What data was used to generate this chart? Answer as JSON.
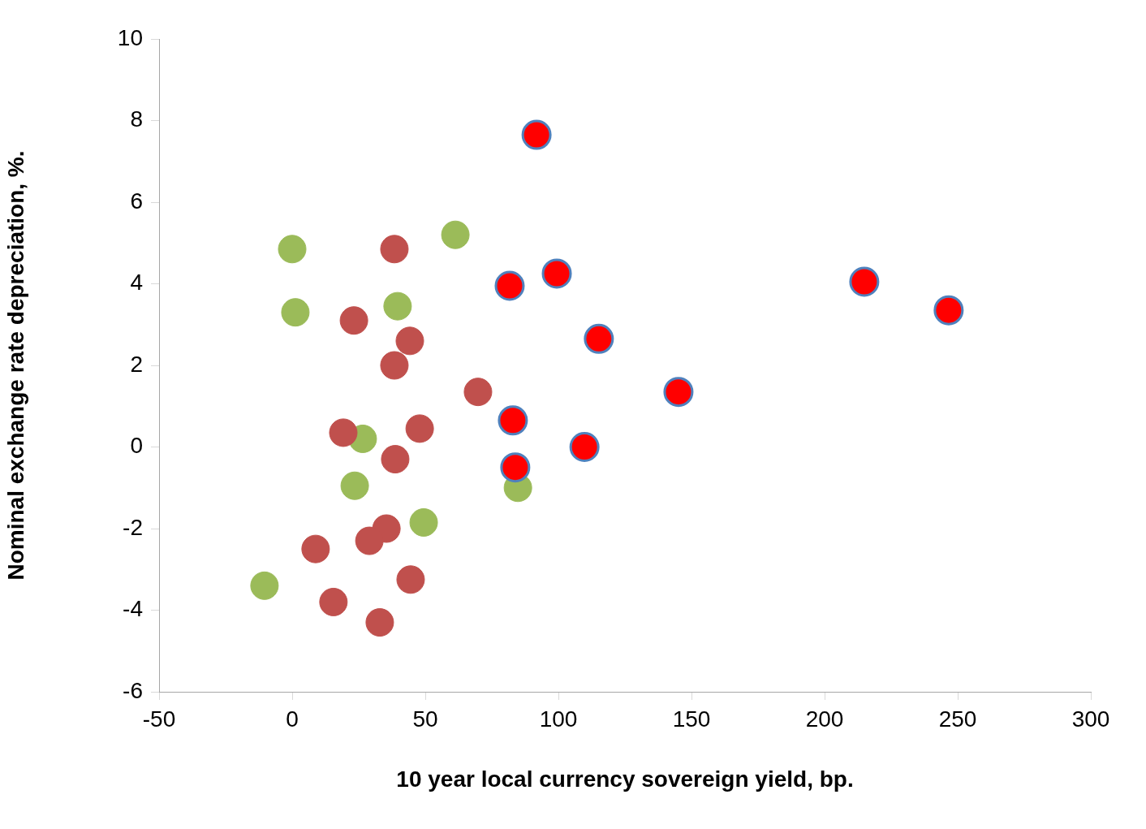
{
  "chart_data": {
    "type": "scatter",
    "xlabel": "10 year local currency sovereign yield, bp.",
    "ylabel": "Nominal exchange rate depreciation, %.",
    "xlim": [
      -50,
      300
    ],
    "xticks": [
      -50,
      0,
      50,
      100,
      150,
      200,
      250,
      300
    ],
    "ylim": [
      -6,
      10
    ],
    "yticks": [
      -6,
      -4,
      -2,
      0,
      2,
      4,
      6,
      8,
      10
    ],
    "grid": false,
    "legend": false,
    "marker": "circle",
    "series": [
      {
        "color": "#9bbb59",
        "x": [
          0,
          1.2,
          61.3,
          39.6,
          26.5,
          23.5,
          49.4,
          84.8,
          -10.4
        ],
        "values": [
          4.85,
          3.3,
          5.2,
          3.45,
          0.2,
          -0.95,
          -1.85,
          -1,
          -3.4
        ]
      },
      {
        "color": "#c0504d",
        "x": [
          38.4,
          23.2,
          44.2,
          38.4,
          69.8,
          19.2,
          47.9,
          38.7,
          35.4,
          29,
          8.8,
          44.5,
          15.5,
          32.9
        ],
        "values": [
          4.85,
          3.1,
          2.6,
          2,
          1.35,
          0.35,
          0.45,
          -0.3,
          -2,
          -2.3,
          -2.5,
          -3.25,
          -3.8,
          -4.3
        ]
      },
      {
        "color": "#ff0000",
        "x": [
          91.8,
          99.4,
          81.7,
          214.9,
          246.6,
          115.2,
          145.1,
          82.9,
          109.8,
          83.8
        ],
        "values": [
          7.65,
          4.25,
          3.95,
          4.05,
          3.35,
          2.65,
          1.35,
          0.65,
          0,
          -0.5
        ]
      }
    ]
  }
}
